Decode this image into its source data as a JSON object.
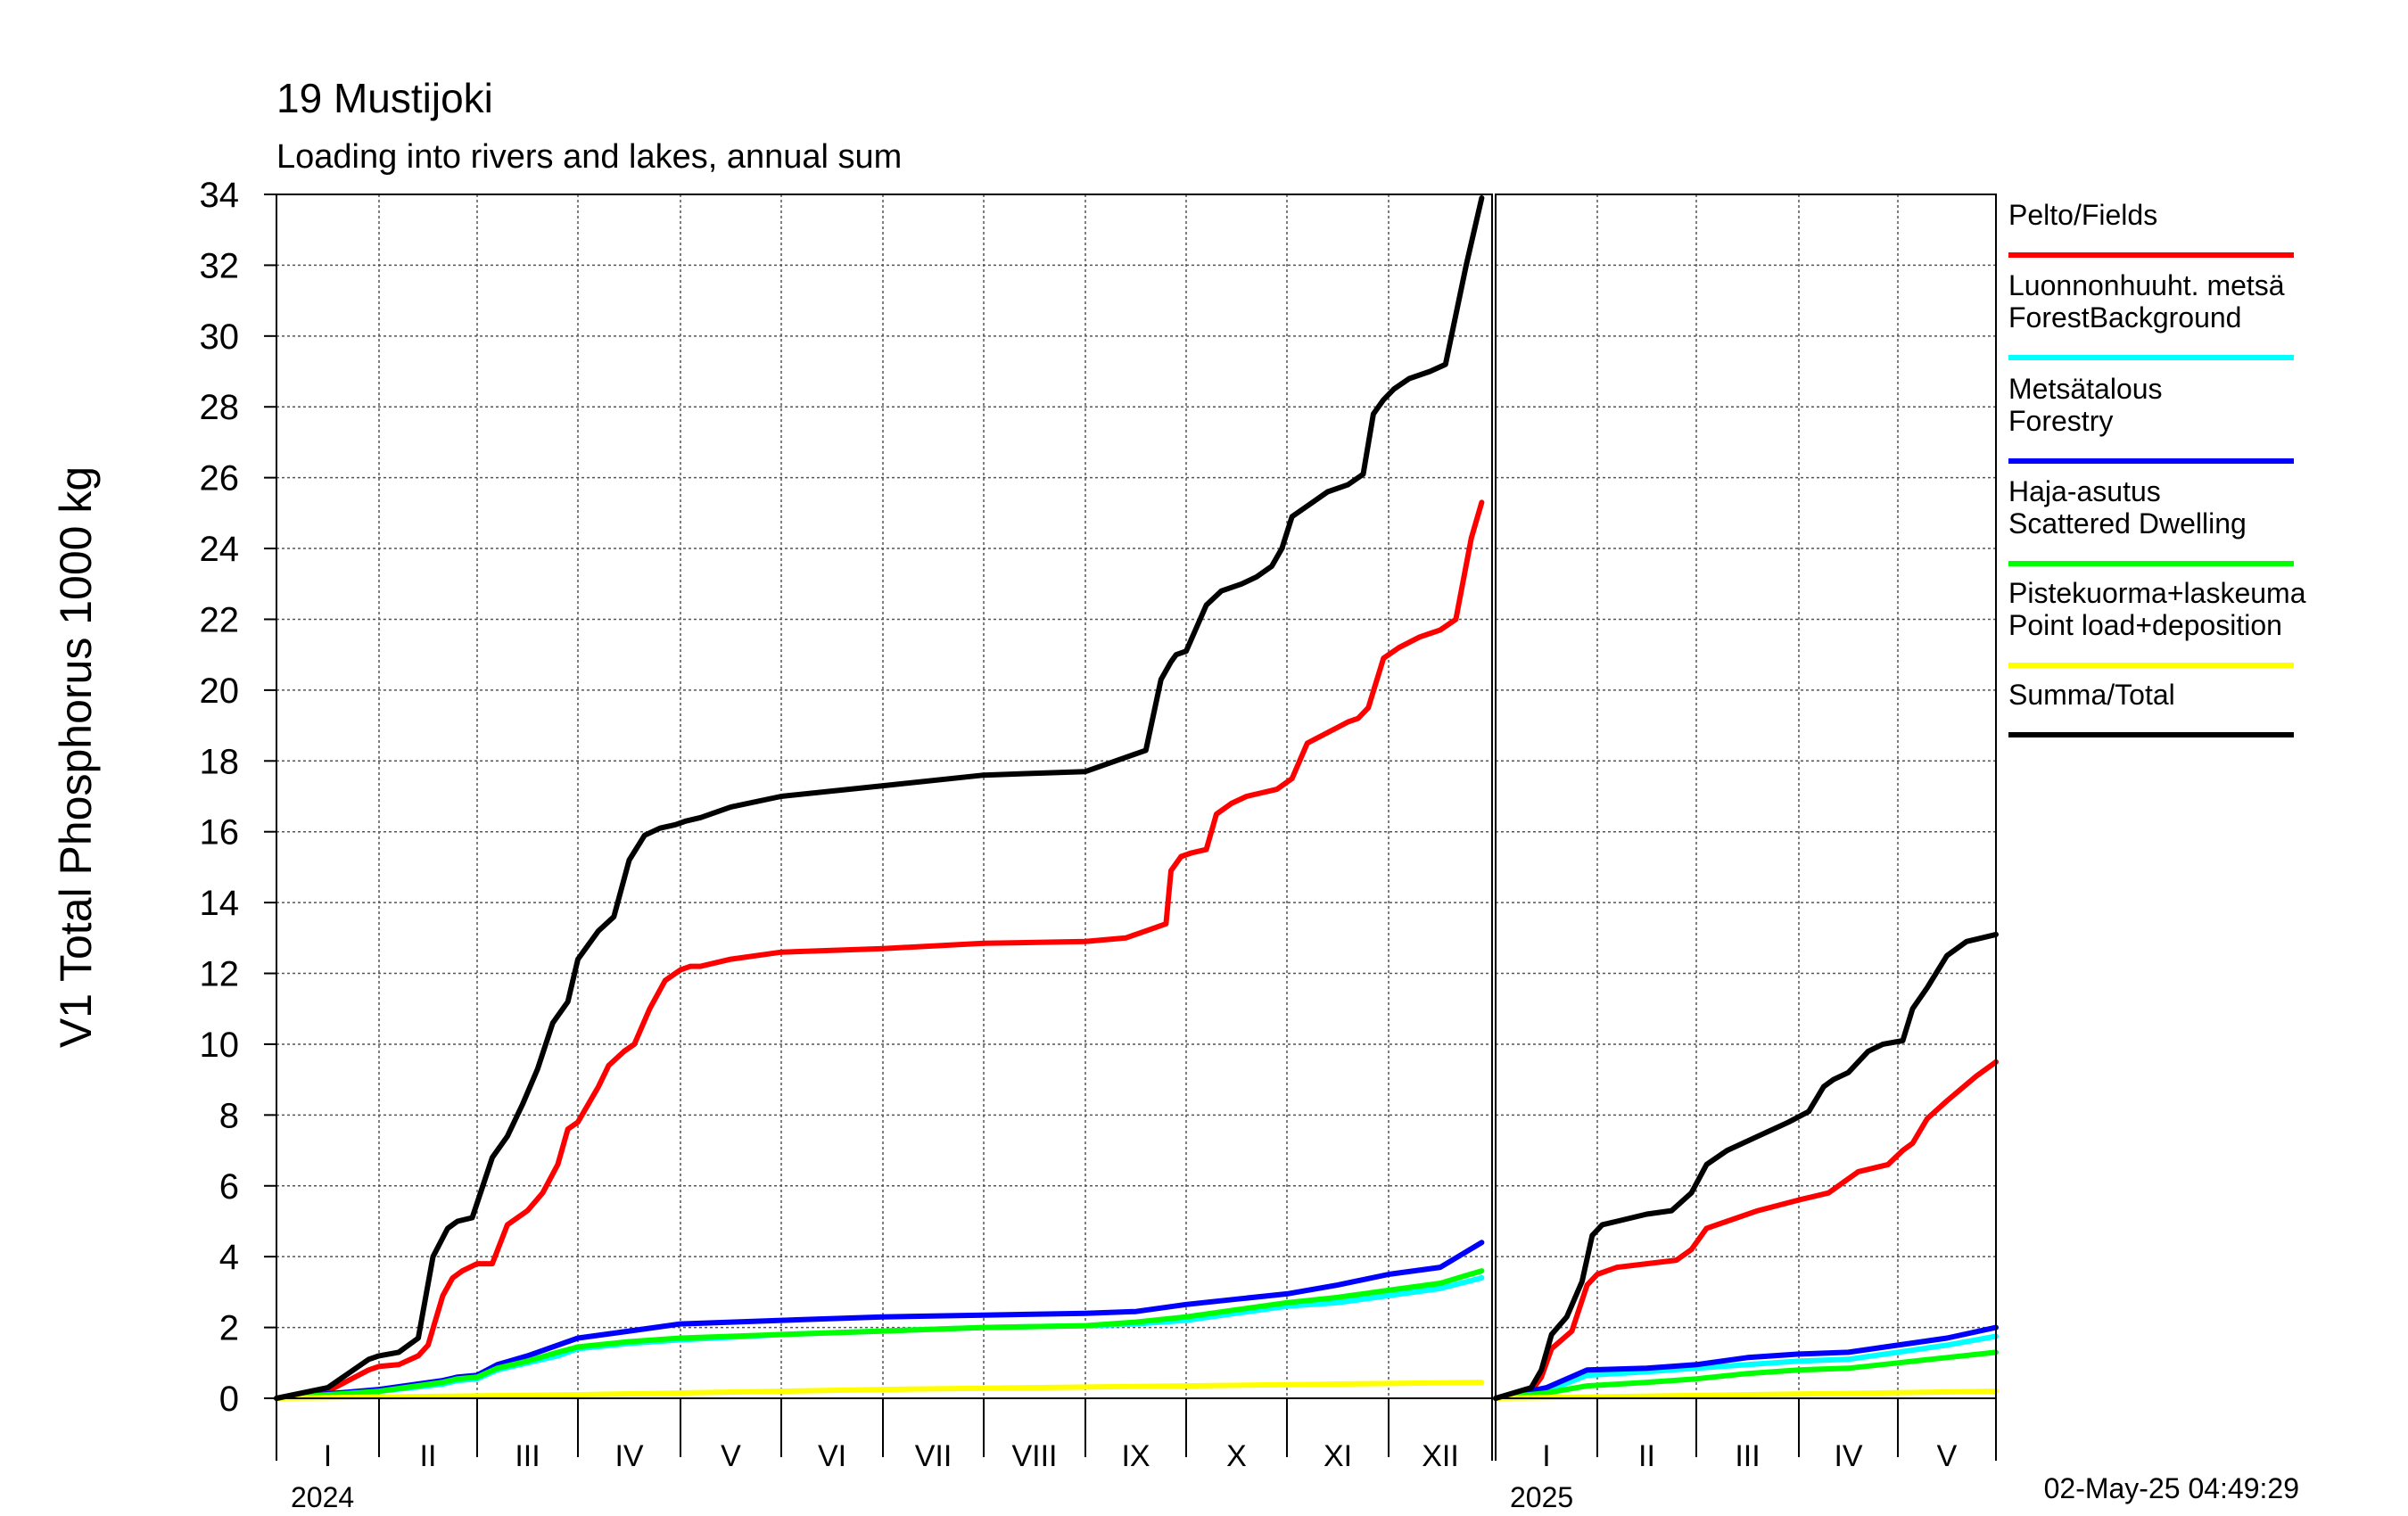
{
  "chart_data": {
    "type": "line",
    "title": "19 Mustijoki",
    "subtitle": "Loading into rivers and lakes, annual sum",
    "ylabel": "V1 Total Phosphorus 1000 kg",
    "ylim": [
      0,
      34
    ],
    "yticks": [
      "0",
      "2",
      "4",
      "6",
      "8",
      "10",
      "12",
      "14",
      "16",
      "18",
      "20",
      "22",
      "24",
      "26",
      "28",
      "30",
      "32",
      "34"
    ],
    "grid": true,
    "legend_position": "right",
    "timestamp": "02-May-25 04:49:29",
    "panels": [
      {
        "year_label": "2024",
        "months": [
          "I",
          "II",
          "III",
          "IV",
          "V",
          "VI",
          "VII",
          "VIII",
          "IX",
          "X",
          "XI",
          "XII"
        ],
        "series": [
          {
            "name": "Pelto/Fields",
            "color": "#ff0000",
            "x": [
              0,
              0.5,
              0.7,
              0.9,
              1.0,
              1.2,
              1.4,
              1.5,
              1.65,
              1.75,
              1.85,
              2.0,
              2.15,
              2.3,
              2.5,
              2.65,
              2.8,
              2.9,
              3.0,
              3.2,
              3.3,
              3.45,
              3.55,
              3.7,
              3.85,
              3.95,
              4.0,
              4.1,
              4.2,
              4.5,
              5.0,
              6.0,
              7.0,
              8.0,
              8.4,
              8.6,
              8.8,
              8.85,
              8.95,
              9.05,
              9.2,
              9.3,
              9.45,
              9.6,
              9.75,
              9.9,
              10.05,
              10.2,
              10.4,
              10.6,
              10.7,
              10.8,
              10.95,
              11.1,
              11.3,
              11.4,
              11.5,
              11.65,
              11.8,
              11.9
            ],
            "y": [
              0,
              0.2,
              0.5,
              0.8,
              0.9,
              0.95,
              1.2,
              1.5,
              2.9,
              3.4,
              3.6,
              3.8,
              3.8,
              4.9,
              5.3,
              5.8,
              6.6,
              7.6,
              7.8,
              8.8,
              9.4,
              9.8,
              10.0,
              11.0,
              11.8,
              12.0,
              12.1,
              12.2,
              12.2,
              12.4,
              12.6,
              12.7,
              12.85,
              12.9,
              13.0,
              13.2,
              13.4,
              14.9,
              15.3,
              15.4,
              15.5,
              16.5,
              16.8,
              17.0,
              17.1,
              17.2,
              17.5,
              18.5,
              18.8,
              19.1,
              19.2,
              19.5,
              20.9,
              21.2,
              21.5,
              21.6,
              21.7,
              22.0,
              24.3,
              25.3
            ]
          },
          {
            "name": "Luonnonhuuht. metsä ForestBackground",
            "color": "#00ffff",
            "x": [
              0,
              1.0,
              1.65,
              1.8,
              2.0,
              2.2,
              2.5,
              2.8,
              3.0,
              3.5,
              4.0,
              5.0,
              6.0,
              7.0,
              8.0,
              8.5,
              9.0,
              9.5,
              10.0,
              10.5,
              11.0,
              11.5,
              11.9
            ],
            "y": [
              0,
              0.2,
              0.4,
              0.5,
              0.55,
              0.8,
              1.0,
              1.2,
              1.4,
              1.55,
              1.65,
              1.8,
              1.9,
              2.0,
              2.05,
              2.1,
              2.2,
              2.4,
              2.6,
              2.7,
              2.9,
              3.1,
              3.4
            ]
          },
          {
            "name": "Metsätalous Forestry",
            "color": "#0000ff",
            "x": [
              0,
              1.0,
              1.65,
              1.8,
              2.0,
              2.2,
              2.5,
              2.8,
              3.0,
              3.5,
              4.0,
              5.0,
              6.0,
              7.0,
              8.0,
              8.5,
              9.0,
              9.5,
              10.0,
              10.5,
              11.0,
              11.5,
              11.9
            ],
            "y": [
              0,
              0.25,
              0.5,
              0.6,
              0.65,
              0.95,
              1.2,
              1.5,
              1.7,
              1.9,
              2.1,
              2.2,
              2.3,
              2.35,
              2.4,
              2.45,
              2.65,
              2.8,
              2.95,
              3.2,
              3.5,
              3.7,
              4.4
            ]
          },
          {
            "name": "Haja-asutus Scattered Dwelling",
            "color": "#00ff00",
            "x": [
              0,
              1.0,
              1.65,
              1.8,
              2.0,
              2.2,
              2.5,
              2.8,
              3.0,
              3.5,
              4.0,
              5.0,
              6.0,
              7.0,
              8.0,
              8.5,
              9.0,
              9.5,
              10.0,
              10.5,
              11.0,
              11.5,
              11.9
            ],
            "y": [
              0,
              0.2,
              0.45,
              0.55,
              0.6,
              0.85,
              1.05,
              1.3,
              1.45,
              1.6,
              1.7,
              1.8,
              1.9,
              2.0,
              2.05,
              2.15,
              2.3,
              2.5,
              2.7,
              2.85,
              3.05,
              3.25,
              3.6
            ]
          },
          {
            "name": "Pistekuorma+laskeuma Point load+deposition",
            "color": "#ffff00",
            "x": [
              0,
              3.0,
              6.0,
              9.0,
              11.9
            ],
            "y": [
              0,
              0.1,
              0.25,
              0.35,
              0.45
            ]
          },
          {
            "name": "Summa/Total",
            "color": "#000000",
            "x": [
              0,
              0.5,
              0.7,
              0.9,
              1.0,
              1.2,
              1.4,
              1.55,
              1.7,
              1.8,
              1.95,
              2.15,
              2.3,
              2.45,
              2.6,
              2.75,
              2.9,
              3.0,
              3.2,
              3.35,
              3.5,
              3.65,
              3.8,
              3.95,
              4.05,
              4.2,
              4.5,
              5.0,
              6.0,
              7.0,
              8.0,
              8.4,
              8.6,
              8.75,
              8.85,
              8.9,
              9.0,
              9.2,
              9.35,
              9.55,
              9.7,
              9.85,
              9.95,
              10.05,
              10.2,
              10.4,
              10.6,
              10.75,
              10.85,
              10.95,
              11.05,
              11.2,
              11.4,
              11.55,
              11.75,
              11.9
            ],
            "y": [
              0,
              0.3,
              0.7,
              1.1,
              1.2,
              1.3,
              1.7,
              4.0,
              4.8,
              5.0,
              5.1,
              6.8,
              7.4,
              8.3,
              9.3,
              10.6,
              11.2,
              12.4,
              13.2,
              13.6,
              15.2,
              15.9,
              16.1,
              16.2,
              16.3,
              16.4,
              16.7,
              17.0,
              17.3,
              17.6,
              17.7,
              18.1,
              18.3,
              20.3,
              20.8,
              21.0,
              21.1,
              22.4,
              22.8,
              23.0,
              23.2,
              23.5,
              24.0,
              24.9,
              25.2,
              25.6,
              25.8,
              26.1,
              27.8,
              28.2,
              28.5,
              28.8,
              29.0,
              29.2,
              32.0,
              33.9
            ]
          }
        ]
      },
      {
        "year_label": "2025",
        "months": [
          "I",
          "II",
          "III",
          "IV",
          "V"
        ],
        "series": [
          {
            "name": "Pelto/Fields",
            "color": "#ff0000",
            "x": [
              0,
              0.35,
              0.45,
              0.55,
              0.75,
              0.9,
              1.0,
              1.2,
              1.5,
              1.8,
              1.95,
              2.1,
              2.3,
              2.6,
              3.0,
              3.3,
              3.45,
              3.6,
              3.9,
              4.05,
              4.15,
              4.3,
              4.5,
              4.8,
              5.0
            ],
            "y": [
              0,
              0.2,
              0.6,
              1.4,
              1.9,
              3.2,
              3.5,
              3.7,
              3.8,
              3.9,
              4.2,
              4.8,
              5.0,
              5.3,
              5.6,
              5.8,
              6.1,
              6.4,
              6.6,
              7.0,
              7.2,
              7.9,
              8.4,
              9.1,
              9.5
            ]
          },
          {
            "name": "Luonnonhuuht. metsä ForestBackground",
            "color": "#00ffff",
            "x": [
              0,
              0.5,
              0.9,
              1.5,
              2.0,
              2.5,
              3.0,
              3.5,
              4.0,
              4.5,
              5.0
            ],
            "y": [
              0,
              0.2,
              0.65,
              0.75,
              0.85,
              0.95,
              1.05,
              1.1,
              1.3,
              1.5,
              1.75
            ]
          },
          {
            "name": "Metsätalous Forestry",
            "color": "#0000ff",
            "x": [
              0,
              0.5,
              0.9,
              1.5,
              2.0,
              2.5,
              3.0,
              3.5,
              4.0,
              4.5,
              5.0
            ],
            "y": [
              0,
              0.3,
              0.8,
              0.85,
              0.95,
              1.15,
              1.25,
              1.3,
              1.5,
              1.7,
              2.0
            ]
          },
          {
            "name": "Haja-asutus Scattered Dwelling",
            "color": "#00ff00",
            "x": [
              0,
              0.5,
              0.9,
              1.5,
              2.0,
              2.5,
              3.0,
              3.5,
              4.0,
              4.5,
              5.0
            ],
            "y": [
              0,
              0.15,
              0.35,
              0.45,
              0.55,
              0.7,
              0.8,
              0.85,
              1.0,
              1.15,
              1.3
            ]
          },
          {
            "name": "Pistekuorma+laskeuma Point load+deposition",
            "color": "#ffff00",
            "x": [
              0,
              2.5,
              5.0
            ],
            "y": [
              0,
              0.1,
              0.2
            ]
          },
          {
            "name": "Summa/Total",
            "color": "#000000",
            "x": [
              0,
              0.35,
              0.45,
              0.55,
              0.7,
              0.85,
              0.95,
              1.05,
              1.2,
              1.5,
              1.75,
              1.95,
              2.1,
              2.3,
              2.6,
              2.9,
              3.1,
              3.25,
              3.35,
              3.5,
              3.7,
              3.85,
              4.05,
              4.15,
              4.3,
              4.5,
              4.7,
              5.0
            ],
            "y": [
              0,
              0.3,
              0.8,
              1.8,
              2.3,
              3.3,
              4.6,
              4.9,
              5.0,
              5.2,
              5.3,
              5.8,
              6.6,
              7.0,
              7.4,
              7.8,
              8.1,
              8.8,
              9.0,
              9.2,
              9.8,
              10.0,
              10.1,
              11.0,
              11.6,
              12.5,
              12.9,
              13.1
            ]
          }
        ]
      }
    ]
  }
}
